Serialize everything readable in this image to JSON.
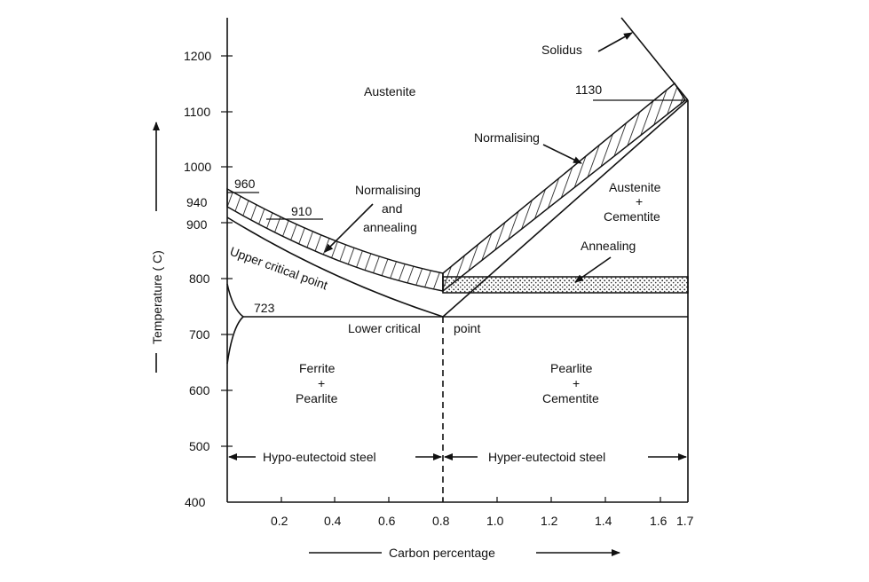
{
  "diagram": {
    "axes": {
      "y_label": "Temperature ( C)",
      "x_label": "Carbon percentage",
      "y_ticks": [
        "400",
        "500",
        "600",
        "700",
        "800",
        "900",
        "1000",
        "1100",
        "1200"
      ],
      "x_ticks": [
        "0.2",
        "0.4",
        "0.6",
        "0.8",
        "1.0",
        "1.2",
        "1.4",
        "1.6",
        "1.7"
      ]
    },
    "temperature_marks": {
      "t960": "960",
      "t940": "940",
      "t910": "910",
      "t723": "723",
      "t1130": "1130"
    },
    "phases": {
      "austenite": "Austenite",
      "austenite_cementite": [
        "Austenite",
        "+",
        "Cementite"
      ],
      "ferrite_pearlite": [
        "Ferrite",
        "+",
        "Pearlite"
      ],
      "pearlite_cementite": [
        "Pearlite",
        "+",
        "Cementite"
      ]
    },
    "annotations": {
      "solidus": "Solidus",
      "normalising": "Normalising",
      "normalising_annealing": [
        "Normalising",
        "and",
        "annealing"
      ],
      "annealing": "Annealing",
      "upper_critical": "Upper critical point",
      "lower_critical": "Lower critical",
      "point": "point"
    },
    "regions": {
      "hypo": "Hypo-eutectoid steel",
      "hyper": "Hyper-eutectoid steel"
    }
  }
}
